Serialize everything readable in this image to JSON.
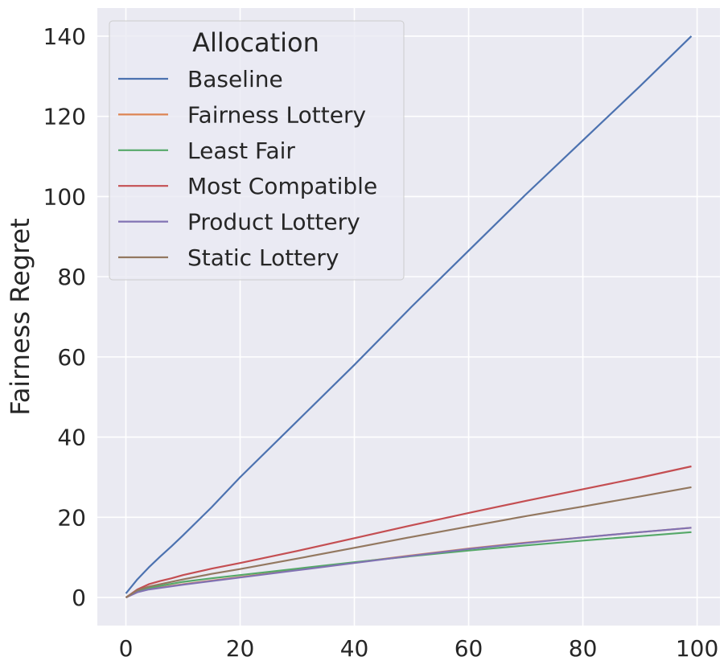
{
  "chart_data": {
    "type": "line",
    "xlabel": "",
    "ylabel": "Fairness Regret",
    "xlim": [
      -5,
      104
    ],
    "ylim": [
      -7,
      147
    ],
    "xticks": [
      0,
      20,
      40,
      60,
      80,
      100
    ],
    "yticks": [
      0,
      20,
      40,
      60,
      80,
      100,
      120,
      140
    ],
    "grid": true,
    "legend": {
      "title": "Allocation",
      "placement": "upper-left"
    },
    "series": [
      {
        "name": "Baseline",
        "color": "#4c72b0",
        "x": [
          0,
          2,
          4,
          6,
          8,
          10,
          15,
          20,
          30,
          40,
          50,
          60,
          70,
          80,
          90,
          99
        ],
        "y": [
          1,
          4.5,
          7.5,
          10.2,
          12.8,
          15.5,
          22.5,
          30,
          44,
          58,
          72.5,
          86.5,
          100.5,
          114,
          127.5,
          140
        ]
      },
      {
        "name": "Fairness Lottery",
        "color": "#dd8452",
        "x": [
          0,
          2,
          4,
          6,
          8,
          10,
          15,
          20,
          30,
          40,
          50,
          60,
          70,
          80,
          90,
          99
        ],
        "y": [
          0,
          1.4,
          2.1,
          2.5,
          2.9,
          3.3,
          4.2,
          5.1,
          6.9,
          8.7,
          10.5,
          12.2,
          13.7,
          15.0,
          16.3,
          17.4
        ]
      },
      {
        "name": "Least Fair",
        "color": "#55a868",
        "x": [
          0,
          2,
          4,
          6,
          8,
          10,
          15,
          20,
          30,
          40,
          50,
          60,
          70,
          80,
          90,
          99
        ],
        "y": [
          0,
          1.7,
          2.4,
          2.9,
          3.4,
          3.9,
          4.8,
          5.6,
          7.2,
          8.8,
          10.3,
          11.7,
          13.0,
          14.2,
          15.3,
          16.3
        ]
      },
      {
        "name": "Most Compatible",
        "color": "#c44e52",
        "x": [
          0,
          2,
          4,
          6,
          8,
          10,
          15,
          20,
          30,
          40,
          50,
          60,
          70,
          80,
          90,
          99
        ],
        "y": [
          0,
          2.0,
          3.3,
          4.1,
          4.8,
          5.6,
          7.2,
          8.6,
          11.6,
          14.8,
          18.0,
          21.1,
          24.1,
          27.0,
          29.9,
          32.7
        ]
      },
      {
        "name": "Product Lottery",
        "color": "#8172b3",
        "x": [
          0,
          2,
          4,
          6,
          8,
          10,
          15,
          20,
          30,
          40,
          50,
          60,
          70,
          80,
          90,
          99
        ],
        "y": [
          0,
          1.3,
          2.0,
          2.4,
          2.8,
          3.2,
          4.1,
          5.0,
          6.8,
          8.6,
          10.4,
          12.1,
          13.6,
          15.0,
          16.3,
          17.4
        ]
      },
      {
        "name": "Static Lottery",
        "color": "#937860",
        "x": [
          0,
          2,
          4,
          6,
          8,
          10,
          15,
          20,
          30,
          40,
          50,
          60,
          70,
          80,
          90,
          99
        ],
        "y": [
          0,
          1.8,
          2.7,
          3.3,
          3.9,
          4.5,
          5.9,
          7.1,
          9.7,
          12.4,
          15.1,
          17.7,
          20.3,
          22.7,
          25.2,
          27.5
        ]
      }
    ]
  }
}
